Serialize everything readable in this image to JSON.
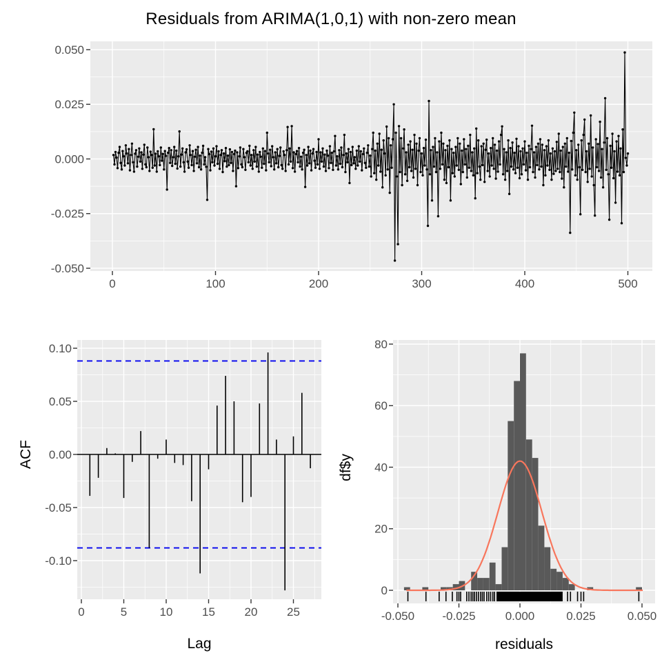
{
  "title": "Residuals from ARIMA(1,0,1) with non-zero mean",
  "colors": {
    "panel_bg": "#EBEBEB",
    "grid": "#FFFFFF",
    "series": "#000000",
    "acf_conf": "#0000EE",
    "hist_bar": "#595959",
    "hist_curve": "#F8765C",
    "tick_text": "#4D4D4D",
    "tick_mark": "#333333"
  },
  "chart_data": [
    {
      "id": "residuals",
      "type": "line",
      "title": "Residuals from ARIMA(1,0,1) with non-zero mean",
      "xlabel": "",
      "ylabel": "",
      "x_ticks": [
        "0",
        "100",
        "200",
        "300",
        "400",
        "500"
      ],
      "y_ticks": [
        "0.050",
        "0.025",
        "0.000",
        "-0.025",
        "-0.050"
      ],
      "xlim": [
        -22,
        524
      ],
      "ylim": [
        -0.0525,
        0.0525
      ],
      "unit": 0.0001,
      "values": [
        18,
        -25,
        32,
        6,
        -42,
        28,
        55,
        -18,
        -48,
        36,
        12,
        -30,
        62,
        25,
        -20,
        45,
        -52,
        18,
        70,
        -15,
        -58,
        24,
        40,
        -35,
        10,
        48,
        -12,
        30,
        -45,
        20,
        65,
        -25,
        -38,
        52,
        8,
        -55,
        33,
        18,
        -40,
        136,
        -30,
        24,
        -58,
        35,
        12,
        -28,
        52,
        -8,
        23,
        -48,
        36,
        14,
        -140,
        28,
        50,
        -18,
        40,
        -32,
        8,
        55,
        -22,
        38,
        -44,
        12,
        126,
        -35,
        20,
        48,
        -15,
        -58,
        30,
        44,
        -12,
        -40,
        62,
        18,
        -28,
        36,
        -55,
        10,
        42,
        -20,
        55,
        -38,
        15,
        -48,
        28,
        60,
        -25,
        8,
        -36,
        -187,
        45,
        22,
        -52,
        33,
        -15,
        48,
        -30,
        12,
        58,
        -22,
        35,
        -45,
        18,
        40,
        -60,
        25,
        -10,
        50,
        -35,
        15,
        -28,
        44,
        -18,
        32,
        -55,
        22,
        38,
        -125,
        30,
        -42,
        12,
        52,
        -25,
        -38,
        45,
        8,
        -50,
        28,
        35,
        -15,
        60,
        -30,
        18,
        -45,
        40,
        -12,
        55,
        -35,
        20,
        -58,
        32,
        10,
        -40,
        48,
        -22,
        36,
        -52,
        120,
        25,
        -15,
        42,
        -33,
        58,
        8,
        -48,
        30,
        -20,
        45,
        -38,
        14,
        52,
        -28,
        -45,
        35,
        18,
        -55,
        40,
        146,
        -25,
        48,
        -12,
        150,
        -42,
        30,
        -58,
        22,
        36,
        -15,
        50,
        -35,
        10,
        -48,
        28,
        42,
        -128,
        18,
        -30,
        55,
        -20,
        38,
        -52,
        25,
        45,
        -8,
        -40,
        32,
        -25,
        90,
        -45,
        30,
        -12,
        48,
        -35,
        20,
        -55,
        38,
        15,
        -42,
        58,
        -18,
        28,
        -50,
        35,
        105,
        -30,
        12,
        -48,
        40,
        -22,
        52,
        -38,
        18,
        110,
        -60,
        25,
        -15,
        45,
        -110,
        32,
        -28,
        55,
        -20,
        8,
        -45,
        38,
        -30,
        58,
        -12,
        35,
        -52,
        22,
        48,
        -18,
        -40,
        28,
        62,
        -35,
        15,
        -80,
        45,
        120,
        -65,
        38,
        -95,
        70,
        -30,
        115,
        -58,
        42,
        -130,
        85,
        25,
        -75,
        148,
        -48,
        95,
        -155,
        62,
        -40,
        90,
        250,
        -465,
        120,
        -80,
        -390,
        150,
        -60,
        95,
        -120,
        48,
        135,
        -70,
        30,
        -100,
        65,
        -38,
        80,
        -55,
        42,
        -85,
        110,
        -45,
        70,
        -120,
        38,
        95,
        -60,
        25,
        -75,
        50,
        -30,
        88,
        -48,
        -306,
        265,
        -70,
        40,
        -190,
        55,
        -35,
        95,
        -60,
        30,
        -262,
        80,
        -45,
        120,
        -25,
        70,
        -95,
        40,
        -110,
        60,
        -38,
        85,
        -190,
        45,
        -65,
        28,
        -80,
        55,
        -30,
        95,
        -50,
        70,
        -115,
        38,
        -60,
        90,
        -25,
        45,
        -85,
        60,
        -40,
        110,
        -55,
        30,
        -75,
        48,
        -180,
        139,
        -65,
        85,
        -35,
        -95,
        58,
        -28,
        70,
        -105,
        42,
        88,
        -55,
        25,
        -80,
        50,
        -30,
        95,
        -45,
        65,
        -90,
        38,
        -58,
        80,
        -25,
        110,
        149,
        -70,
        45,
        -95,
        30,
        -55,
        85,
        -160,
        50,
        -35,
        75,
        -48,
        28,
        -65,
        92,
        -40,
        58,
        -88,
        35,
        -70,
        48,
        -25,
        80,
        -52,
        28,
        -95,
        60,
        -38,
        45,
        152,
        -60,
        30,
        -85,
        55,
        -28,
        70,
        -48,
        90,
        -35,
        65,
        -120,
        40,
        -75,
        58,
        -30,
        85,
        -50,
        25,
        -95,
        48,
        -68,
        35,
        -55,
        78,
        -45,
        115,
        -60,
        38,
        -90,
        55,
        -130,
        70,
        -35,
        95,
        -58,
        28,
        -338,
        82,
        -48,
        120,
        212,
        -75,
        40,
        -95,
        65,
        -38,
        -253,
        85,
        -50,
        110,
        180,
        -60,
        35,
        -105,
        70,
        -45,
        199,
        -80,
        52,
        -120,
        -259,
        90,
        -38,
        68,
        -55,
        170,
        -85,
        45,
        -130,
        75,
        278,
        -50,
        95,
        -70,
        -278,
        60,
        -40,
        115,
        -88,
        35,
        -200,
        80,
        -58,
        105,
        -75,
        48,
        -294,
        135,
        -60,
        487,
        5,
        -30,
        25
      ]
    },
    {
      "id": "acf",
      "type": "bar",
      "xlabel": "Lag",
      "ylabel": "ACF",
      "x_ticks": [
        "0",
        "5",
        "10",
        "15",
        "20",
        "25"
      ],
      "y_ticks": [
        "0.10",
        "0.05",
        "0.00",
        "-0.05",
        "-0.10"
      ],
      "lag_start": 1,
      "conf_level": 0.088,
      "values": [
        -0.039,
        -0.022,
        0.006,
        0.001,
        -0.041,
        -0.007,
        0.022,
        -0.088,
        -0.004,
        0.014,
        -0.008,
        -0.01,
        -0.044,
        -0.112,
        -0.014,
        0.046,
        0.074,
        0.05,
        -0.045,
        -0.04,
        0.048,
        0.096,
        0.014,
        -0.128,
        0.017,
        0.058,
        -0.013
      ]
    },
    {
      "id": "histogram",
      "type": "histogram",
      "xlabel": "residuals",
      "ylabel": "df$y",
      "x_ticks": [
        "-0.050",
        "-0.025",
        "0.000",
        "0.025",
        "0.050"
      ],
      "y_ticks": [
        "80",
        "60",
        "40",
        "20",
        "0"
      ],
      "binwidth": 0.0025,
      "bin_centers": [
        -0.04625,
        -0.03875,
        -0.03125,
        -0.02875,
        -0.02625,
        -0.02375,
        -0.01875,
        -0.01625,
        -0.01375,
        -0.01125,
        -0.00875,
        -0.00625,
        -0.00375,
        -0.00125,
        0.00125,
        0.00375,
        0.00625,
        0.00875,
        0.01125,
        0.01375,
        0.01625,
        0.01875,
        0.02125,
        0.02875,
        0.04875
      ],
      "counts": [
        1,
        1,
        1,
        1,
        2,
        3,
        6,
        4,
        4,
        9,
        2,
        14,
        55,
        68,
        77,
        49,
        43,
        21,
        14,
        7,
        6,
        4,
        2,
        1,
        1
      ],
      "normal_curve": {
        "peak": 42,
        "mean": 0,
        "sd": 0.009,
        "range": [
          -0.0465,
          0.051
        ]
      },
      "rug_band": [
        -0.0096,
        0.0175
      ],
      "rug_ticks": [
        -0.0459,
        -0.0385,
        -0.0331,
        -0.0303,
        -0.0277,
        -0.0258,
        -0.025,
        -0.0243,
        -0.0218,
        -0.0209,
        -0.02,
        -0.0193,
        -0.0186,
        -0.0178,
        -0.017,
        -0.0161,
        -0.0154,
        -0.0147,
        -0.0136,
        -0.0128,
        -0.012,
        -0.0111,
        -0.0104,
        0.0195,
        0.0207,
        0.0236,
        0.025,
        0.0261,
        0.0487
      ]
    }
  ]
}
